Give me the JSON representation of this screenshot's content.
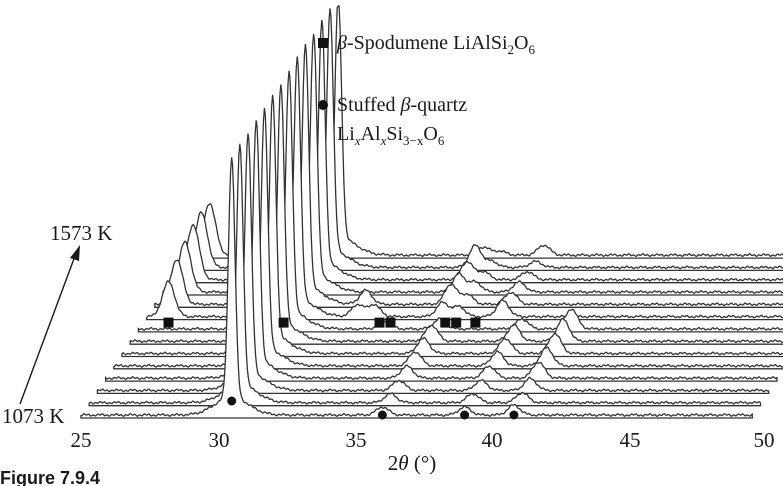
{
  "chart_data": {
    "type": "line",
    "caption": "Figure 7.9.4",
    "xlabel_prefix": "2",
    "xlabel_theta": "θ",
    "xlabel_unit": " (°)",
    "x_ticks": [
      "25",
      "30",
      "35",
      "40",
      "45",
      "50"
    ],
    "xlim": [
      25,
      50
    ],
    "start_label": "1073 K",
    "end_label": "1573 K",
    "trace_count": 14,
    "legend": {
      "spodumene": {
        "beta": "β",
        "name": "-Spodumene LiAlSi",
        "sub1": "2",
        "mid": "O",
        "sub2": "6"
      },
      "quartz": {
        "line1_prefix": "Stuffed ",
        "beta": "β",
        "line1_suffix": "-quartz",
        "li": "Li",
        "x1": "x",
        "al": "Al",
        "x2": "x",
        "si": "Si",
        "three_minus_x": "3−x",
        "o": "O",
        "six": "6"
      }
    },
    "series_colors": {
      "trace": "#333333",
      "marker": "#111111"
    },
    "main_peak_2theta": 30.5,
    "spodumene_peaks_2theta": [
      25.8,
      30.0,
      32.7,
      33.3,
      35.8,
      36.4,
      38.0
    ],
    "quartz_peaks_2theta": [
      30.5,
      36.0,
      39.0,
      40.8
    ],
    "peaks_per_trace": [
      [
        [
          30.5,
          240
        ],
        [
          36.0,
          8
        ],
        [
          39.0,
          8
        ],
        [
          40.8,
          10
        ]
      ],
      [
        [
          30.5,
          240
        ],
        [
          36.0,
          9
        ],
        [
          39.0,
          9
        ],
        [
          40.8,
          10
        ]
      ],
      [
        [
          30.5,
          240
        ],
        [
          36.0,
          10
        ],
        [
          39.0,
          10
        ],
        [
          40.8,
          12
        ]
      ],
      [
        [
          30.5,
          240
        ],
        [
          36.0,
          12
        ],
        [
          39.0,
          12
        ],
        [
          40.8,
          16
        ]
      ],
      [
        [
          30.5,
          240
        ],
        [
          36.0,
          14
        ],
        [
          39.0,
          14
        ],
        [
          40.8,
          18
        ]
      ],
      [
        [
          30.5,
          240
        ],
        [
          36.0,
          15
        ],
        [
          39.0,
          15
        ],
        [
          40.8,
          20
        ]
      ],
      [
        [
          30.5,
          240
        ],
        [
          36.0,
          16
        ],
        [
          39.0,
          16
        ],
        [
          40.8,
          22
        ]
      ],
      [
        [
          30.5,
          240
        ],
        [
          34.0,
          8
        ],
        [
          36.0,
          10
        ],
        [
          39.0,
          10
        ],
        [
          40.8,
          20
        ]
      ],
      [
        [
          25.8,
          35
        ],
        [
          30.0,
          28
        ],
        [
          30.5,
          240
        ],
        [
          32.7,
          12
        ],
        [
          33.3,
          12
        ],
        [
          35.8,
          14
        ],
        [
          36.4,
          10
        ],
        [
          38.0,
          16
        ]
      ],
      [
        [
          25.8,
          45
        ],
        [
          30.0,
          24
        ],
        [
          30.5,
          240
        ],
        [
          32.7,
          14
        ],
        [
          35.8,
          20
        ],
        [
          36.4,
          10
        ],
        [
          38.0,
          12
        ]
      ],
      [
        [
          25.8,
          50
        ],
        [
          30.0,
          20
        ],
        [
          30.5,
          240
        ],
        [
          35.8,
          18
        ],
        [
          36.4,
          10
        ],
        [
          38.0,
          10
        ]
      ],
      [
        [
          25.8,
          55
        ],
        [
          30.0,
          16
        ],
        [
          30.5,
          240
        ],
        [
          35.8,
          18
        ],
        [
          36.4,
          8
        ],
        [
          38.0,
          8
        ]
      ],
      [
        [
          25.8,
          55
        ],
        [
          30.0,
          14
        ],
        [
          30.5,
          240
        ],
        [
          35.8,
          22
        ],
        [
          36.4,
          6
        ],
        [
          38.0,
          6
        ]
      ],
      [
        [
          25.8,
          52
        ],
        [
          30.0,
          12
        ],
        [
          30.5,
          240
        ],
        [
          35.8,
          8
        ],
        [
          36.4,
          4
        ],
        [
          38.0,
          10
        ]
      ]
    ],
    "square_markers": [
      {
        "trace": 8,
        "x": 25.8
      },
      {
        "trace": 8,
        "x": 30.0
      },
      {
        "trace": 8,
        "x": 33.5
      },
      {
        "trace": 8,
        "x": 33.9
      },
      {
        "trace": 8,
        "x": 35.9
      },
      {
        "trace": 8,
        "x": 36.3
      },
      {
        "trace": 8,
        "x": 37.0
      }
    ],
    "dot_markers": [
      {
        "trace": 0,
        "x": 30.5
      },
      {
        "trace": 0,
        "x": 36.0
      },
      {
        "trace": 0,
        "x": 39.0
      },
      {
        "trace": 0,
        "x": 40.8
      }
    ]
  }
}
